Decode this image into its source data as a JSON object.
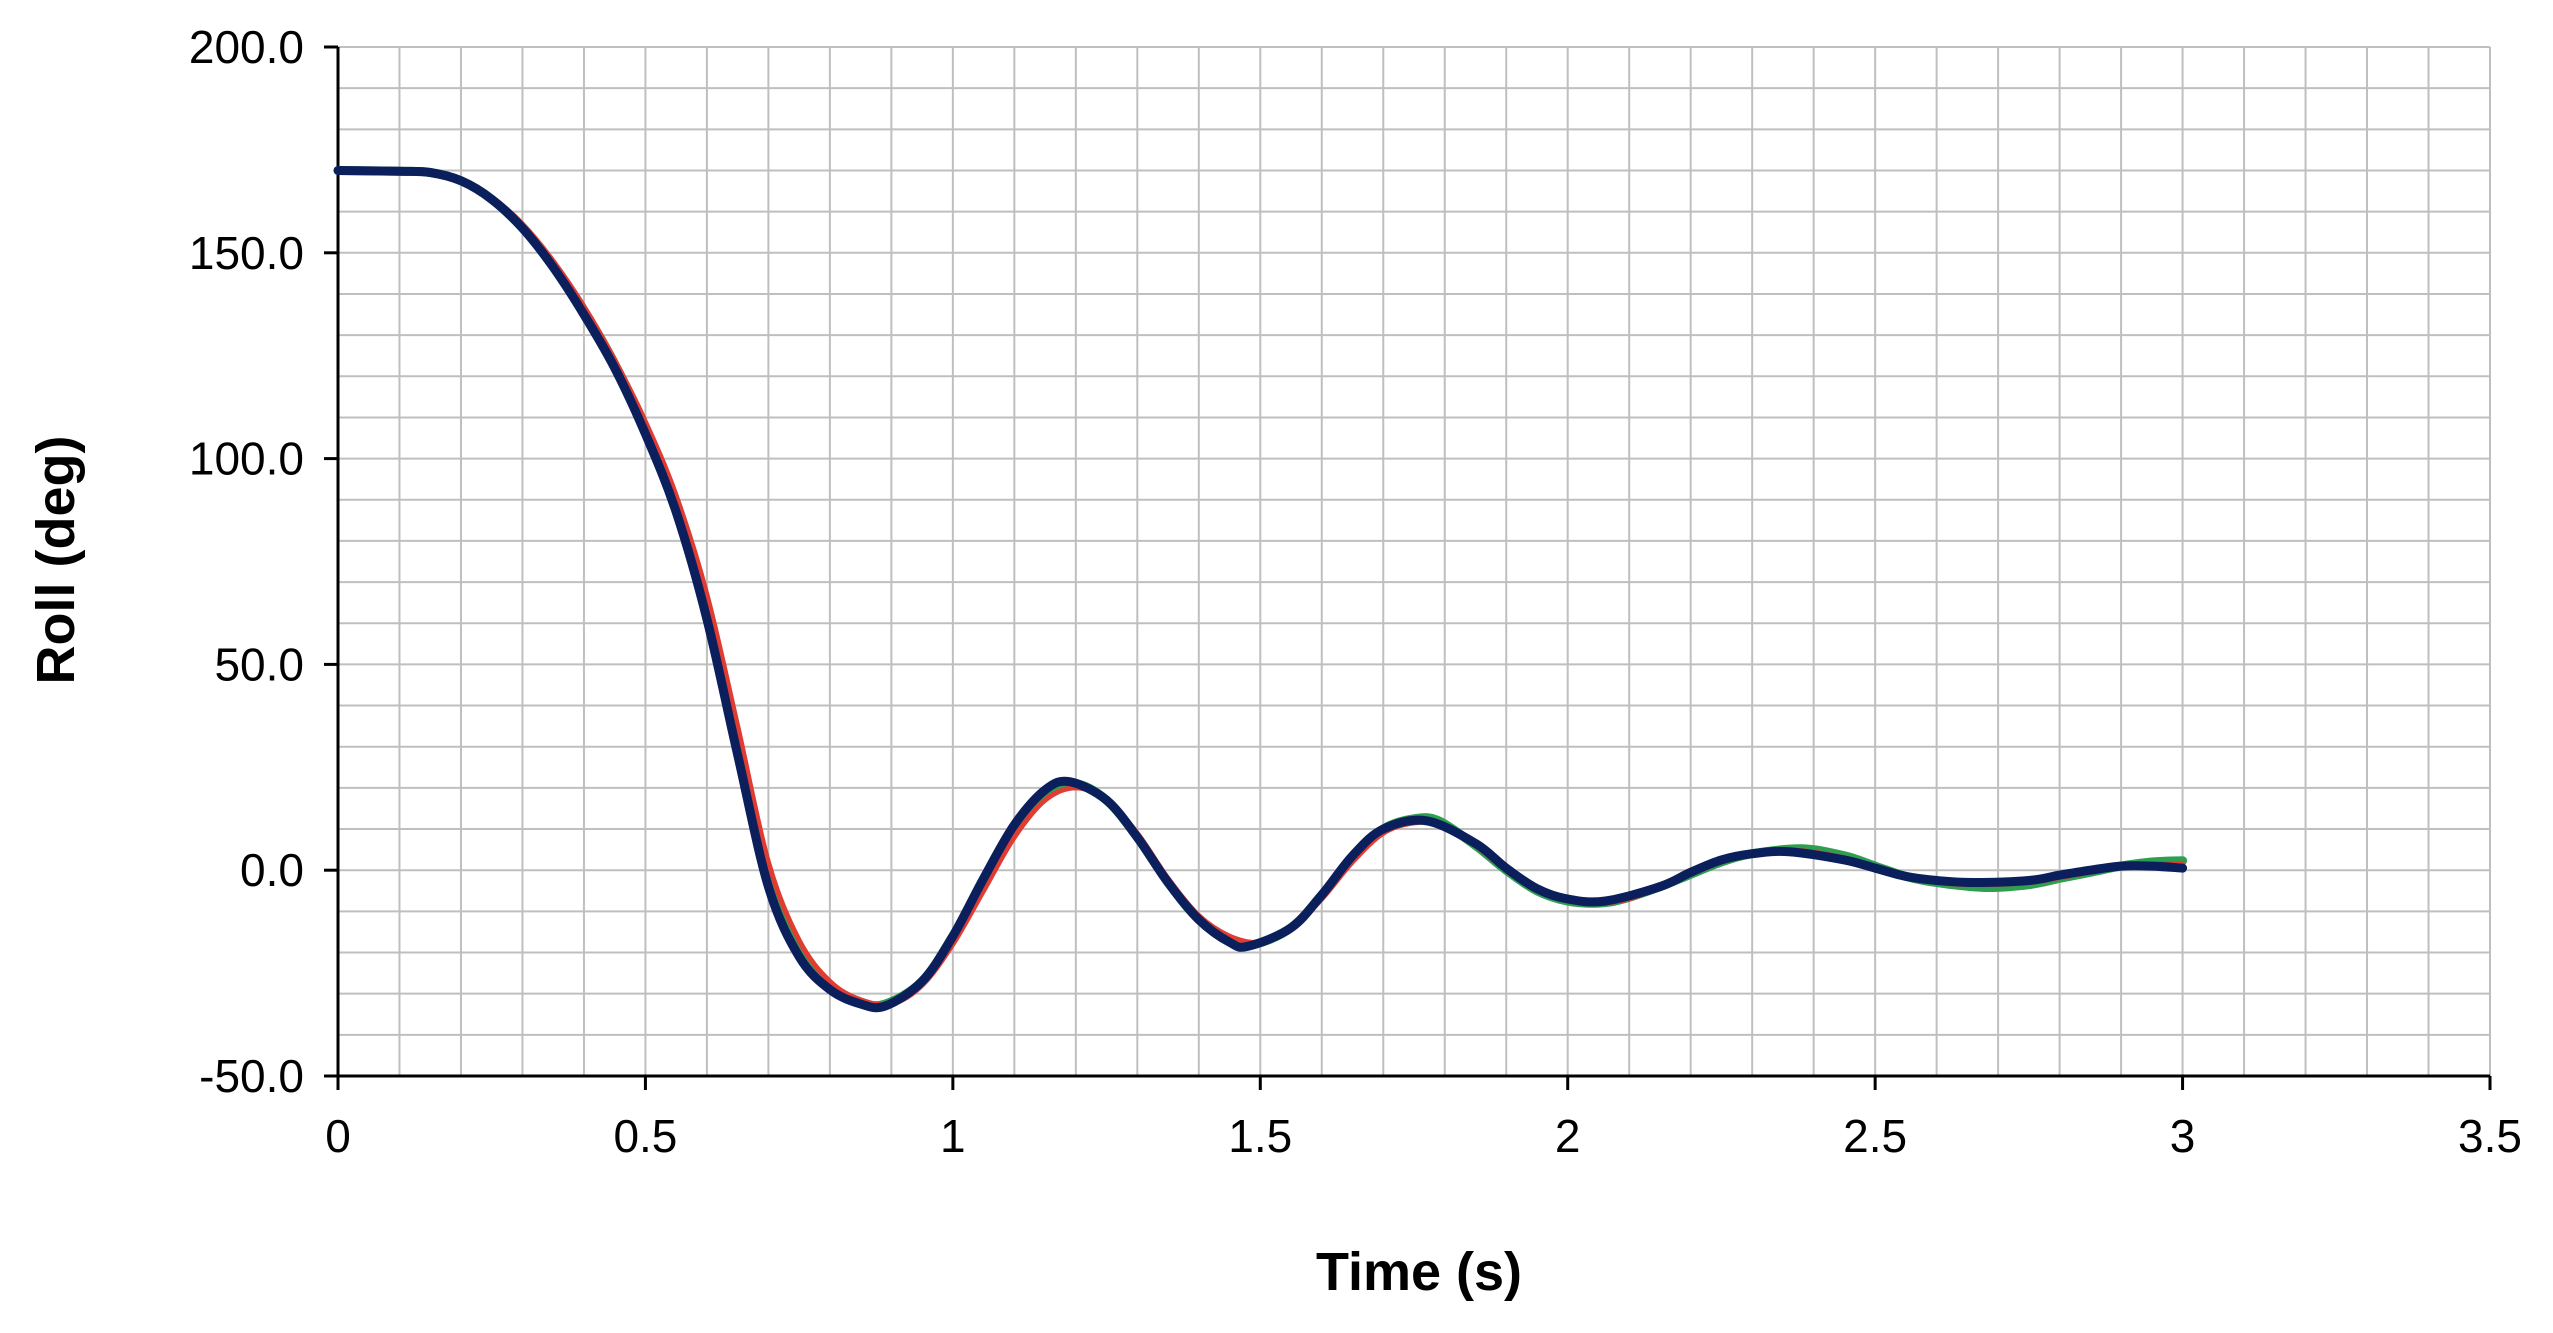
{
  "chart_data": {
    "type": "line",
    "xlabel": "Time (s)",
    "ylabel": "Roll (deg)",
    "xlim": [
      0,
      3.5
    ],
    "ylim": [
      -50,
      200
    ],
    "x_ticks": [
      0,
      0.5,
      1,
      1.5,
      2,
      2.5,
      3,
      3.5
    ],
    "x_tick_labels": [
      "0",
      "0.5",
      "1",
      "1.5",
      "2",
      "2.5",
      "3",
      "3.5"
    ],
    "y_ticks": [
      -50,
      0,
      50,
      100,
      150,
      200
    ],
    "y_tick_labels": [
      "-50.0",
      "0.0",
      "50.0",
      "100.0",
      "150.0",
      "200.0"
    ],
    "grid": true,
    "grid_minor_x": 0.1,
    "grid_minor_y": 10,
    "grid_color": "#bfbfbf",
    "legend": "none",
    "series": [
      {
        "color": "#2e9e4f",
        "x": [
          0,
          0.1,
          0.15,
          0.2,
          0.25,
          0.3,
          0.35,
          0.4,
          0.45,
          0.5,
          0.55,
          0.6,
          0.65,
          0.7,
          0.75,
          0.8,
          0.85,
          0.89,
          0.95,
          1.0,
          1.05,
          1.1,
          1.15,
          1.2,
          1.25,
          1.3,
          1.35,
          1.4,
          1.45,
          1.49,
          1.55,
          1.6,
          1.65,
          1.7,
          1.75,
          1.79,
          1.85,
          1.9,
          1.95,
          2.0,
          2.05,
          2.09,
          2.15,
          2.2,
          2.25,
          2.3,
          2.38,
          2.45,
          2.5,
          2.55,
          2.6,
          2.68,
          2.75,
          2.8,
          2.85,
          2.9,
          2.95,
          3.0
        ],
        "y": [
          170,
          169.8,
          169.5,
          167.5,
          163,
          156,
          147,
          136,
          123,
          107,
          88,
          63,
          30,
          -2,
          -20,
          -28,
          -32,
          -32.5,
          -27,
          -16,
          -3,
          10,
          19,
          21,
          17,
          8,
          -3,
          -12,
          -17,
          -18,
          -14,
          -6,
          3,
          10,
          12.5,
          12,
          6,
          0,
          -5,
          -7.5,
          -8,
          -7,
          -4,
          -1,
          2,
          4,
          5.2,
          3.5,
          1,
          -1.5,
          -3,
          -4.2,
          -3.5,
          -2,
          -0.5,
          1,
          2,
          2.3
        ]
      },
      {
        "color": "#e03c31",
        "x": [
          0,
          0.1,
          0.15,
          0.2,
          0.25,
          0.3,
          0.35,
          0.4,
          0.45,
          0.5,
          0.55,
          0.6,
          0.65,
          0.7,
          0.75,
          0.8,
          0.85,
          0.9,
          0.95,
          1.0,
          1.05,
          1.1,
          1.15,
          1.2,
          1.25,
          1.3,
          1.35,
          1.4,
          1.45,
          1.5,
          1.55,
          1.6,
          1.65,
          1.7,
          1.75,
          1.8,
          1.85,
          1.9,
          1.95,
          2.0,
          2.05,
          2.1,
          2.15,
          2.2,
          2.25,
          2.3,
          2.37,
          2.45,
          2.5,
          2.55,
          2.6,
          2.67,
          2.75,
          2.8,
          2.85,
          2.9,
          2.95,
          3.0
        ],
        "y": [
          170,
          169.8,
          169.5,
          167.5,
          163.5,
          157,
          148,
          137,
          124,
          109,
          91,
          67,
          35,
          2,
          -17,
          -27,
          -31.5,
          -32.5,
          -28,
          -18,
          -5,
          8,
          17,
          20,
          17,
          9,
          -2,
          -11,
          -16,
          -17.5,
          -14,
          -7,
          2,
          9,
          11.5,
          11,
          6,
          0,
          -5,
          -7.5,
          -8,
          -7,
          -4,
          -1,
          2,
          3.8,
          4.8,
          3,
          0.5,
          -1.5,
          -3,
          -3.5,
          -3,
          -1.8,
          -0.5,
          0.8,
          1.5,
          1.5
        ]
      },
      {
        "color": "#0a1f5c",
        "x": [
          0,
          0.1,
          0.15,
          0.2,
          0.25,
          0.3,
          0.35,
          0.4,
          0.45,
          0.5,
          0.55,
          0.6,
          0.65,
          0.7,
          0.75,
          0.8,
          0.85,
          0.89,
          0.95,
          1.0,
          1.05,
          1.1,
          1.15,
          1.19,
          1.25,
          1.3,
          1.35,
          1.4,
          1.45,
          1.48,
          1.55,
          1.6,
          1.65,
          1.7,
          1.77,
          1.85,
          1.9,
          1.95,
          2.0,
          2.06,
          2.15,
          2.2,
          2.25,
          2.3,
          2.36,
          2.45,
          2.5,
          2.55,
          2.6,
          2.66,
          2.75,
          2.8,
          2.85,
          2.9,
          2.95,
          3.0
        ],
        "y": [
          170,
          169.8,
          169.5,
          167.5,
          163,
          156,
          146.5,
          135,
          122,
          106,
          87,
          61,
          28,
          -4,
          -21,
          -29,
          -32.5,
          -33,
          -27,
          -16,
          -2,
          11,
          19.5,
          21.5,
          17,
          8,
          -3,
          -12,
          -17.5,
          -18.5,
          -14,
          -6,
          3.5,
          10,
          12,
          6.5,
          0.5,
          -4.5,
          -7,
          -7.5,
          -4,
          -0.5,
          2.5,
          4,
          4.5,
          2.5,
          0.5,
          -1.5,
          -2.5,
          -3,
          -2.5,
          -1.2,
          0,
          1,
          1,
          0.5
        ]
      }
    ]
  }
}
